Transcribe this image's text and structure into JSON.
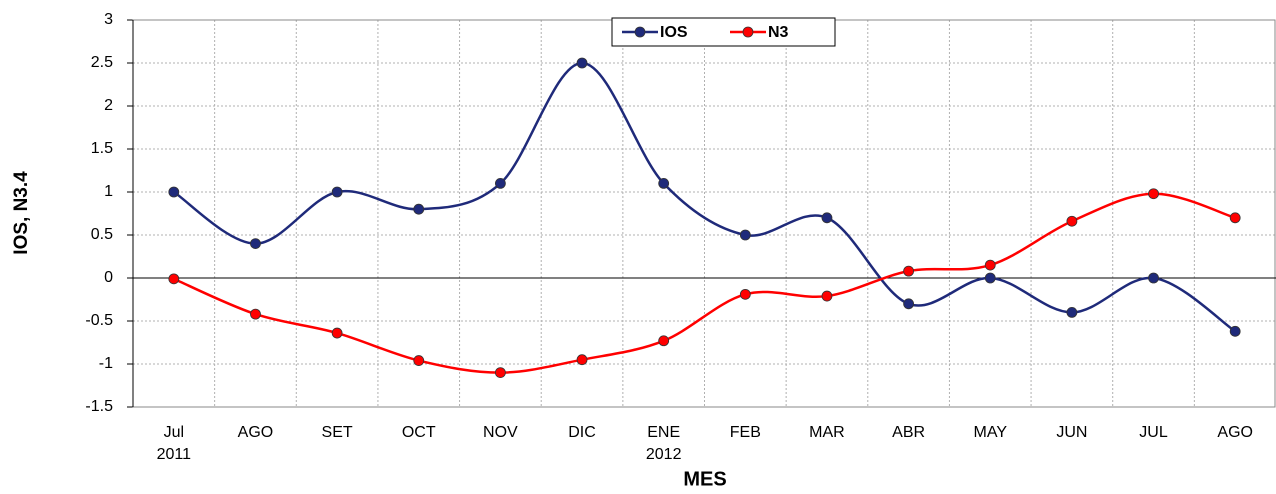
{
  "chart_data": {
    "type": "line",
    "x_title": "MES",
    "y_title": "IOS, N3.4",
    "categories": [
      "Jul",
      "AGO",
      "SET",
      "OCT",
      "NOV",
      "DIC",
      "ENE",
      "FEB",
      "MAR",
      "ABR",
      "MAY",
      "JUN",
      "JUL",
      "AGO"
    ],
    "category_sublabels": [
      "2011",
      null,
      null,
      null,
      null,
      null,
      "2012",
      null,
      null,
      null,
      null,
      null,
      null,
      null
    ],
    "series": [
      {
        "name": "IOS",
        "color": "#1f2a7a",
        "values": [
          1,
          0.4,
          1,
          0.8,
          1.1,
          2.5,
          1.1,
          0.5,
          0.7,
          -0.3,
          0,
          -0.4,
          0,
          -0.62
        ]
      },
      {
        "name": "N3",
        "color": "#ff0000",
        "values": [
          -0.01,
          -0.42,
          -0.64,
          -0.96,
          -1.1,
          -0.95,
          -0.73,
          -0.19,
          -0.21,
          0.08,
          0.15,
          0.66,
          0.98,
          0.7
        ]
      }
    ],
    "ylim": [
      -1.5,
      3
    ],
    "yticks": [
      -1.5,
      -1,
      -0.5,
      0,
      0.5,
      1,
      1.5,
      2,
      2.5,
      3
    ],
    "grid": true,
    "smooth": true,
    "legend": "top"
  }
}
